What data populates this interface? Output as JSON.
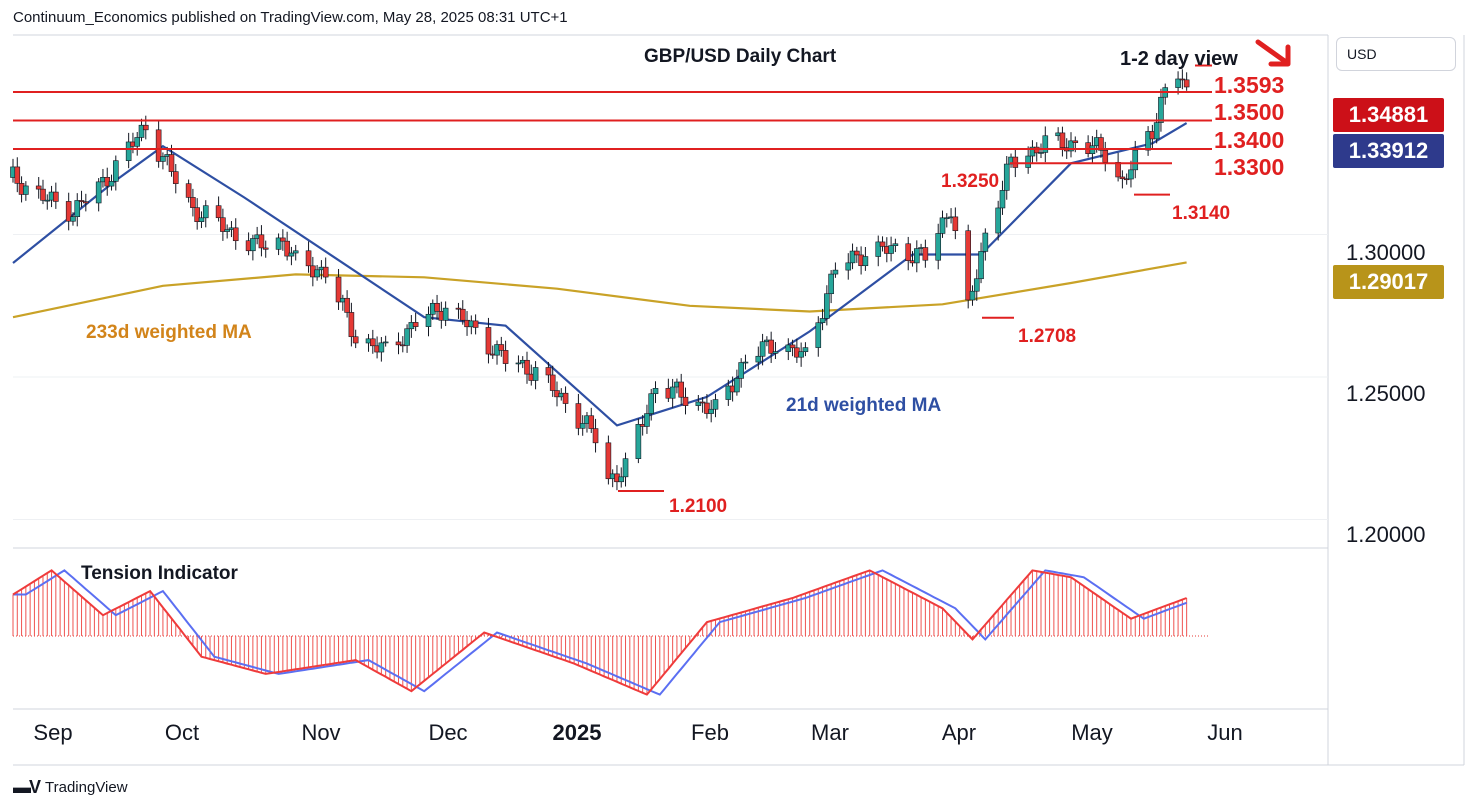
{
  "header": {
    "publisher_line": "Continuum_Economics published on TradingView.com, May 28, 2025 08:31 UTC+1"
  },
  "toolbar": {
    "currency": "USD"
  },
  "footer": {
    "brand": "TradingView"
  },
  "colors": {
    "up_candle": "#26a69a",
    "down_candle": "#e53935",
    "ma21": "#2e4fa3",
    "ma233": "#c9a227",
    "levels": "#e02020",
    "tag_last": "#cc1018",
    "tag_ma21": "#2e3a8c",
    "tag_ma233": "#b8941a"
  },
  "chart_data": [
    {
      "type": "line",
      "title": "GBP/USD Daily Chart",
      "subtitle": "1-2 day view",
      "arrow": "down",
      "currency": "USD",
      "ylim": [
        1.19,
        1.37
      ],
      "y_ticks": [
        "1.30000",
        "1.25000",
        "1.20000"
      ],
      "x_ticks": [
        "Sep",
        "Oct",
        "Nov",
        "Dec",
        "2025",
        "Feb",
        "Mar",
        "Apr",
        "May",
        "Jun"
      ],
      "x_range": [
        "2024-08-27",
        "2025-06-30"
      ],
      "price_tags": [
        {
          "label": "1.34881",
          "value": 1.34881,
          "role": "last-price"
        },
        {
          "label": "1.33912",
          "value": 1.33912,
          "role": "21d-ma"
        },
        {
          "label": "1.29017",
          "value": 1.29017,
          "role": "233d-ma"
        }
      ],
      "levels": [
        {
          "label": "1.3593",
          "value": 1.3593
        },
        {
          "label": "1.3500",
          "value": 1.35
        },
        {
          "label": "1.3400",
          "value": 1.34
        },
        {
          "label": "1.3300",
          "value": 1.33
        },
        {
          "label": "1.3250",
          "value": 1.325
        },
        {
          "label": "1.3140",
          "value": 1.314
        },
        {
          "label": "1.2708",
          "value": 1.2708
        },
        {
          "label": "1.2100",
          "value": 1.21
        }
      ],
      "annotations": [
        "233d weighted MA",
        "21d weighted MA"
      ],
      "close_series": {
        "dates": [
          "2024-08-27",
          "2024-09-03",
          "2024-09-10",
          "2024-09-17",
          "2024-09-24",
          "2024-09-27",
          "2024-10-01",
          "2024-10-08",
          "2024-10-15",
          "2024-10-22",
          "2024-10-29",
          "2024-11-01",
          "2024-11-08",
          "2024-11-15",
          "2024-11-22",
          "2024-11-29",
          "2024-12-06",
          "2024-12-13",
          "2024-12-20",
          "2024-12-27",
          "2025-01-03",
          "2025-01-10",
          "2025-01-13",
          "2025-01-17",
          "2025-01-24",
          "2025-01-31",
          "2025-02-07",
          "2025-02-14",
          "2025-02-21",
          "2025-02-28",
          "2025-03-07",
          "2025-03-14",
          "2025-03-21",
          "2025-03-28",
          "2025-04-03",
          "2025-04-07",
          "2025-04-11",
          "2025-04-17",
          "2025-04-25",
          "2025-05-02",
          "2025-05-09",
          "2025-05-13",
          "2025-05-20",
          "2025-05-23",
          "2025-05-26",
          "2025-05-28"
        ],
        "values": [
          1.32,
          1.313,
          1.308,
          1.318,
          1.332,
          1.338,
          1.327,
          1.309,
          1.303,
          1.296,
          1.298,
          1.29,
          1.287,
          1.264,
          1.259,
          1.269,
          1.275,
          1.266,
          1.256,
          1.252,
          1.241,
          1.229,
          1.214,
          1.218,
          1.247,
          1.243,
          1.238,
          1.256,
          1.262,
          1.257,
          1.288,
          1.294,
          1.295,
          1.292,
          1.31,
          1.273,
          1.3,
          1.325,
          1.332,
          1.332,
          1.329,
          1.318,
          1.337,
          1.351,
          1.356,
          1.3488
        ]
      },
      "series": [
        {
          "name": "21d weighted MA",
          "x": [
            "2024-08-27",
            "2024-09-20",
            "2024-10-01",
            "2024-10-20",
            "2024-11-10",
            "2024-12-01",
            "2024-12-20",
            "2025-01-15",
            "2025-02-05",
            "2025-03-01",
            "2025-03-25",
            "2025-04-10",
            "2025-05-01",
            "2025-05-20",
            "2025-05-28"
          ],
          "values": [
            1.29,
            1.319,
            1.331,
            1.313,
            1.292,
            1.271,
            1.268,
            1.233,
            1.243,
            1.266,
            1.293,
            1.293,
            1.325,
            1.332,
            1.3391
          ]
        },
        {
          "name": "233d weighted MA",
          "x": [
            "2024-08-27",
            "2024-10-01",
            "2024-11-01",
            "2024-12-01",
            "2025-01-01",
            "2025-02-01",
            "2025-03-01",
            "2025-04-01",
            "2025-05-01",
            "2025-05-28"
          ],
          "values": [
            1.271,
            1.282,
            1.286,
            1.285,
            1.281,
            1.275,
            1.273,
            1.2755,
            1.283,
            1.2902
          ]
        }
      ]
    },
    {
      "type": "area",
      "title": "Tension Indicator",
      "ylim": [
        -1.0,
        1.1
      ],
      "x": [
        "2024-08-27",
        "2024-09-05",
        "2024-09-17",
        "2024-09-28",
        "2024-10-10",
        "2024-10-25",
        "2024-11-15",
        "2024-11-28",
        "2024-12-15",
        "2025-01-05",
        "2025-01-22",
        "2025-02-05",
        "2025-02-25",
        "2025-03-15",
        "2025-04-01",
        "2025-04-08",
        "2025-04-22",
        "2025-05-01",
        "2025-05-15",
        "2025-05-28"
      ],
      "values": [
        0.6,
        0.95,
        0.3,
        0.65,
        -0.3,
        -0.55,
        -0.35,
        -0.8,
        0.05,
        -0.4,
        -0.85,
        0.2,
        0.55,
        0.95,
        0.4,
        -0.05,
        0.95,
        0.85,
        0.25,
        0.55
      ]
    }
  ]
}
